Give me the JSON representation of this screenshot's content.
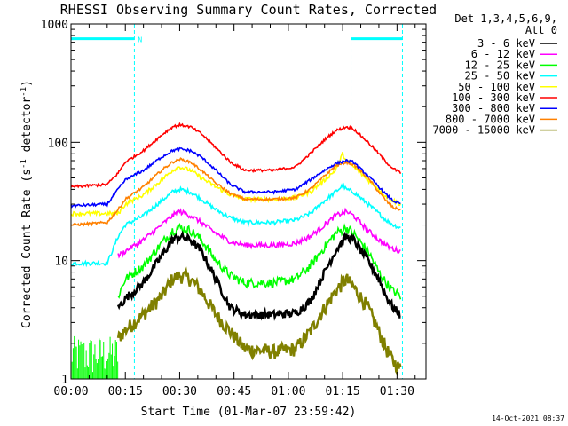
{
  "chart_data": {
    "type": "line",
    "title": "RHESSI Observing Summary Count Rates, Corrected",
    "ylabel_main": "Corrected Count Rate (s",
    "ylabel_sup1": "-1",
    "ylabel_mid": " detector",
    "ylabel_sup2": "-1",
    "ylabel_end": ")",
    "xlabel": "Start Time (01-Mar-07 23:59:42)",
    "yscale": "log",
    "ylim": [
      1,
      1000
    ],
    "xlim": [
      0,
      98
    ],
    "y_ticks": [
      {
        "value": 1,
        "label": "1"
      },
      {
        "value": 10,
        "label": "10"
      },
      {
        "value": 100,
        "label": "100"
      },
      {
        "value": 1000,
        "label": "1000"
      }
    ],
    "x_ticks": [
      {
        "value": 0,
        "label": "00:00"
      },
      {
        "value": 15,
        "label": "00:15"
      },
      {
        "value": 30,
        "label": "00:30"
      },
      {
        "value": 45,
        "label": "00:45"
      },
      {
        "value": 60,
        "label": "01:00"
      },
      {
        "value": 75,
        "label": "01:15"
      },
      {
        "value": 90,
        "label": "01:30"
      }
    ],
    "legend_header": [
      "Det 1,3,4,5,6,9,",
      "Att 0"
    ],
    "series": [
      {
        "name": "3 - 6 keV",
        "color": "#000000",
        "noise": 0.08,
        "points": [
          [
            13,
            4
          ],
          [
            15,
            4.8
          ],
          [
            20,
            6.5
          ],
          [
            25,
            11
          ],
          [
            28,
            15
          ],
          [
            30,
            16
          ],
          [
            33,
            15
          ],
          [
            36,
            12
          ],
          [
            40,
            7
          ],
          [
            44,
            4
          ],
          [
            48,
            3.5
          ],
          [
            56,
            3.5
          ],
          [
            62,
            3.6
          ],
          [
            66,
            4.5
          ],
          [
            70,
            8
          ],
          [
            73,
            12
          ],
          [
            76,
            16
          ],
          [
            78,
            15
          ],
          [
            82,
            10
          ],
          [
            85,
            7
          ],
          [
            87,
            5
          ],
          [
            89,
            4
          ],
          [
            91,
            3.5
          ]
        ]
      },
      {
        "name": "6 - 12 keV",
        "color": "#ff00ff",
        "noise": 0.05,
        "points": [
          [
            13,
            11
          ],
          [
            15,
            12
          ],
          [
            20,
            15
          ],
          [
            25,
            20
          ],
          [
            28,
            24
          ],
          [
            30,
            26
          ],
          [
            33,
            24
          ],
          [
            36,
            21
          ],
          [
            40,
            17
          ],
          [
            44,
            14.5
          ],
          [
            48,
            13.5
          ],
          [
            56,
            13.5
          ],
          [
            62,
            14
          ],
          [
            66,
            16
          ],
          [
            70,
            20
          ],
          [
            73,
            24
          ],
          [
            76,
            26
          ],
          [
            78,
            24
          ],
          [
            82,
            18
          ],
          [
            85,
            15
          ],
          [
            87,
            13.5
          ],
          [
            89,
            12.5
          ],
          [
            91,
            12
          ]
        ]
      },
      {
        "name": "12 - 25 keV",
        "color": "#00ff00",
        "noise": 0.09,
        "points": [
          [
            13,
            5
          ],
          [
            15,
            7
          ],
          [
            20,
            9
          ],
          [
            25,
            14
          ],
          [
            28,
            18
          ],
          [
            30,
            19
          ],
          [
            33,
            18
          ],
          [
            36,
            15
          ],
          [
            40,
            10
          ],
          [
            44,
            7.5
          ],
          [
            48,
            6.5
          ],
          [
            56,
            6.5
          ],
          [
            62,
            7
          ],
          [
            66,
            9
          ],
          [
            70,
            13
          ],
          [
            73,
            17
          ],
          [
            76,
            19
          ],
          [
            78,
            17
          ],
          [
            82,
            12
          ],
          [
            85,
            8
          ],
          [
            87,
            6.5
          ],
          [
            89,
            5.5
          ],
          [
            91,
            5
          ]
        ]
      },
      {
        "name": "25 - 50 keV",
        "color": "#00ffff",
        "noise": 0.04,
        "points": [
          [
            0,
            9.5
          ],
          [
            10,
            9.5
          ],
          [
            13,
            16
          ],
          [
            15,
            20
          ],
          [
            20,
            24
          ],
          [
            25,
            32
          ],
          [
            28,
            38
          ],
          [
            30,
            40
          ],
          [
            33,
            38
          ],
          [
            36,
            33
          ],
          [
            40,
            27
          ],
          [
            44,
            23
          ],
          [
            48,
            21
          ],
          [
            56,
            21
          ],
          [
            62,
            22
          ],
          [
            66,
            25
          ],
          [
            70,
            32
          ],
          [
            73,
            38
          ],
          [
            75,
            43
          ],
          [
            76,
            40
          ],
          [
            78,
            38
          ],
          [
            82,
            30
          ],
          [
            85,
            25
          ],
          [
            87,
            22
          ],
          [
            89,
            20
          ],
          [
            91,
            19
          ]
        ]
      },
      {
        "name": "50 - 100 keV",
        "color": "#ffff00",
        "noise": 0.04,
        "points": [
          [
            0,
            25
          ],
          [
            13,
            25
          ],
          [
            15,
            30
          ],
          [
            20,
            36
          ],
          [
            25,
            48
          ],
          [
            28,
            58
          ],
          [
            30,
            62
          ],
          [
            33,
            58
          ],
          [
            36,
            50
          ],
          [
            40,
            42
          ],
          [
            44,
            36
          ],
          [
            48,
            33
          ],
          [
            56,
            33
          ],
          [
            62,
            34
          ],
          [
            66,
            38
          ],
          [
            70,
            48
          ],
          [
            73,
            58
          ],
          [
            75,
            80
          ],
          [
            76,
            70
          ],
          [
            78,
            62
          ],
          [
            82,
            48
          ],
          [
            85,
            40
          ],
          [
            87,
            35
          ],
          [
            89,
            32
          ],
          [
            91,
            30
          ]
        ]
      },
      {
        "name": "100 - 300 keV",
        "color": "#ff0000",
        "noise": 0.025,
        "points": [
          [
            0,
            42
          ],
          [
            10,
            44
          ],
          [
            13,
            55
          ],
          [
            15,
            68
          ],
          [
            20,
            85
          ],
          [
            25,
            115
          ],
          [
            28,
            135
          ],
          [
            30,
            140
          ],
          [
            33,
            135
          ],
          [
            36,
            118
          ],
          [
            40,
            90
          ],
          [
            44,
            68
          ],
          [
            48,
            58
          ],
          [
            56,
            58
          ],
          [
            62,
            62
          ],
          [
            66,
            80
          ],
          [
            70,
            105
          ],
          [
            73,
            125
          ],
          [
            76,
            135
          ],
          [
            78,
            130
          ],
          [
            82,
            100
          ],
          [
            85,
            80
          ],
          [
            87,
            68
          ],
          [
            89,
            60
          ],
          [
            91,
            55
          ]
        ]
      },
      {
        "name": "300 - 800 keV",
        "color": "#0000ff",
        "noise": 0.025,
        "points": [
          [
            0,
            29
          ],
          [
            10,
            30
          ],
          [
            13,
            40
          ],
          [
            15,
            48
          ],
          [
            20,
            58
          ],
          [
            25,
            75
          ],
          [
            28,
            85
          ],
          [
            30,
            88
          ],
          [
            33,
            85
          ],
          [
            36,
            75
          ],
          [
            40,
            58
          ],
          [
            44,
            44
          ],
          [
            48,
            38
          ],
          [
            56,
            38
          ],
          [
            62,
            40
          ],
          [
            66,
            48
          ],
          [
            70,
            58
          ],
          [
            73,
            66
          ],
          [
            76,
            70
          ],
          [
            78,
            68
          ],
          [
            82,
            52
          ],
          [
            85,
            42
          ],
          [
            87,
            36
          ],
          [
            89,
            32
          ],
          [
            91,
            30
          ]
        ]
      },
      {
        "name": "800 - 7000 keV",
        "color": "#ff8000",
        "noise": 0.025,
        "points": [
          [
            0,
            20
          ],
          [
            10,
            21
          ],
          [
            13,
            27
          ],
          [
            15,
            33
          ],
          [
            20,
            42
          ],
          [
            25,
            58
          ],
          [
            28,
            68
          ],
          [
            30,
            72
          ],
          [
            33,
            68
          ],
          [
            36,
            58
          ],
          [
            40,
            45
          ],
          [
            44,
            37
          ],
          [
            48,
            33
          ],
          [
            56,
            33
          ],
          [
            62,
            34
          ],
          [
            66,
            40
          ],
          [
            70,
            52
          ],
          [
            73,
            63
          ],
          [
            76,
            68
          ],
          [
            78,
            65
          ],
          [
            82,
            50
          ],
          [
            85,
            38
          ],
          [
            87,
            32
          ],
          [
            89,
            28
          ],
          [
            91,
            27
          ]
        ]
      },
      {
        "name": "7000 - 15000 keV",
        "color": "#808000",
        "noise": 0.14,
        "points": [
          [
            13,
            2.2
          ],
          [
            15,
            2.6
          ],
          [
            20,
            3.5
          ],
          [
            25,
            5
          ],
          [
            28,
            7
          ],
          [
            30,
            7.5
          ],
          [
            33,
            7
          ],
          [
            36,
            5.5
          ],
          [
            40,
            3.5
          ],
          [
            44,
            2.5
          ],
          [
            48,
            1.8
          ],
          [
            56,
            1.7
          ],
          [
            62,
            1.8
          ],
          [
            66,
            2.5
          ],
          [
            70,
            4
          ],
          [
            73,
            5.5
          ],
          [
            76,
            7
          ],
          [
            78,
            6
          ],
          [
            82,
            4
          ],
          [
            85,
            2.5
          ],
          [
            87,
            1.8
          ],
          [
            89,
            1.4
          ],
          [
            91,
            1.2
          ]
        ]
      }
    ],
    "green_low_band": {
      "x_range": [
        0,
        13
      ],
      "lo": 1,
      "hi": 2.3
    },
    "attenuator_segments": [
      {
        "x_range": [
          0,
          17.5
        ],
        "value": 750,
        "label": "N"
      },
      {
        "x_range": [
          77.3,
          91.5
        ],
        "value": 750,
        "label": ""
      }
    ],
    "flag_line_color": "#00ffff",
    "footer_timestamp": "14-Oct-2021 08:37"
  }
}
